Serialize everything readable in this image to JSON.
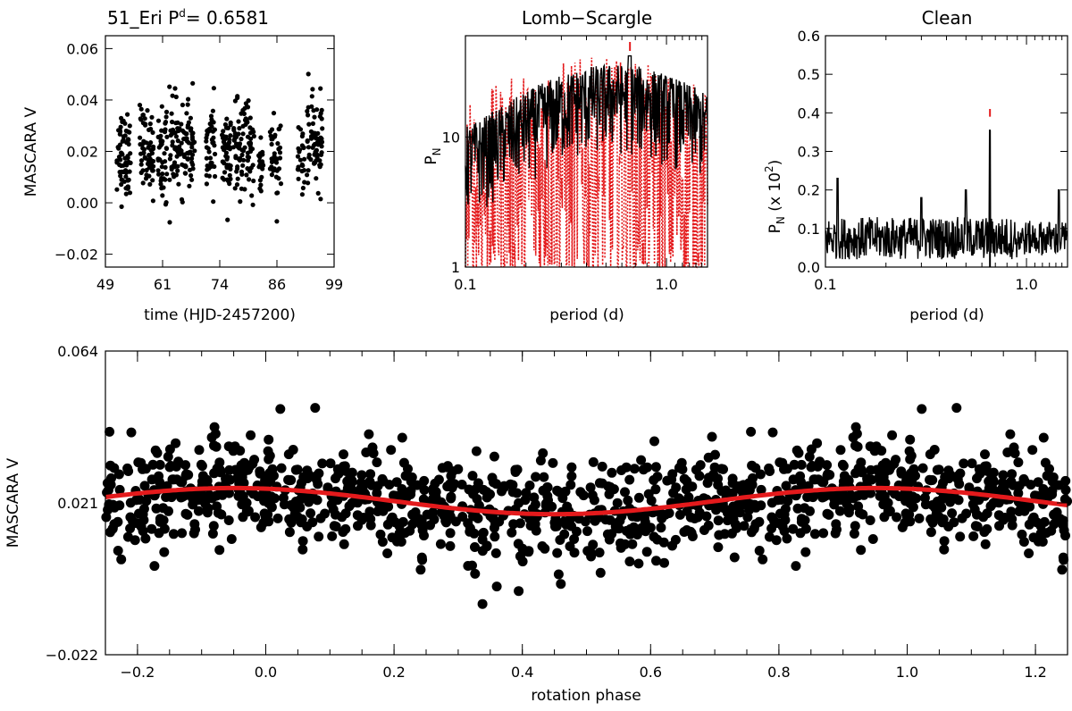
{
  "chart_data": [
    {
      "id": "timeseries",
      "type": "scatter",
      "title": "51_Eri P",
      "title_sup": "d",
      "title_suffix": "= 0.6581",
      "xlabel": "time (HJD-2457200)",
      "ylabel": "MASCARA V",
      "xlim": [
        49,
        99
      ],
      "ylim": [
        -0.025,
        0.065
      ],
      "xticks": [
        "49",
        "61",
        "74",
        "86",
        "99"
      ],
      "yticks": [
        "−0.02",
        "0.00",
        "0.02",
        "0.04",
        "0.06"
      ],
      "ytick_values": [
        -0.02,
        0.0,
        0.02,
        0.04,
        0.06
      ],
      "clusters": [
        {
          "x": [
            51.5,
            54.5
          ],
          "center": 0.019,
          "count": 70
        },
        {
          "x": [
            56.5,
            59.5
          ],
          "center": 0.02,
          "count": 60
        },
        {
          "x": [
            60.5,
            62.5
          ],
          "center": 0.019,
          "count": 45
        },
        {
          "x": [
            63.0,
            68.5
          ],
          "center": 0.022,
          "count": 110
        },
        {
          "x": [
            71.0,
            73.0
          ],
          "center": 0.021,
          "count": 40
        },
        {
          "x": [
            74.5,
            76.5
          ],
          "center": 0.018,
          "count": 50
        },
        {
          "x": [
            77.0,
            81.5
          ],
          "center": 0.021,
          "count": 90
        },
        {
          "x": [
            82.5,
            83.5
          ],
          "center": 0.015,
          "count": 20
        },
        {
          "x": [
            85.0,
            87.5
          ],
          "center": 0.017,
          "count": 40
        },
        {
          "x": [
            91.0,
            92.5
          ],
          "center": 0.016,
          "count": 25
        },
        {
          "x": [
            93.0,
            96.5
          ],
          "center": 0.024,
          "count": 70
        }
      ]
    },
    {
      "id": "lomb_scargle",
      "type": "line",
      "title": "Lomb−Scargle",
      "xlabel": "period (d)",
      "ylabel": "P",
      "ylabel_sub": "N",
      "xscale": "log",
      "yscale": "log",
      "xlim": [
        0.1,
        1.6
      ],
      "ylim": [
        1,
        60
      ],
      "xticks": [
        "0.1",
        "1.0"
      ],
      "xtick_values": [
        0.1,
        1.0
      ],
      "yticks": [
        "1",
        "10"
      ],
      "ytick_values": [
        1,
        10
      ],
      "series": [
        {
          "name": "periodogram",
          "color": "#000000",
          "style": "solid"
        },
        {
          "name": "window",
          "color": "#e41a1c",
          "style": "dotted"
        }
      ],
      "peak_marker_period": 0.6581
    },
    {
      "id": "clean",
      "type": "line",
      "title": "Clean",
      "xlabel": "period (d)",
      "ylabel": "P",
      "ylabel_sub": "N",
      "ylabel_suffix": " (x 10",
      "ylabel_sup": "2",
      "ylabel_close": ")",
      "xscale": "log",
      "xlim": [
        0.1,
        1.6
      ],
      "ylim": [
        0.0,
        0.6
      ],
      "xticks": [
        "0.1",
        "1.0"
      ],
      "xtick_values": [
        0.1,
        1.0
      ],
      "yticks": [
        "0.0",
        "0.1",
        "0.2",
        "0.3",
        "0.4",
        "0.5",
        "0.6"
      ],
      "ytick_values": [
        0.0,
        0.1,
        0.2,
        0.3,
        0.4,
        0.5,
        0.6
      ],
      "peak_period": 0.6581,
      "peak_value": 0.355,
      "secondary_peaks": [
        [
          0.115,
          0.23
        ],
        [
          0.3,
          0.18
        ],
        [
          0.5,
          0.2
        ],
        [
          1.45,
          0.2
        ]
      ],
      "color": "#000000",
      "marker_color": "#e41a1c"
    },
    {
      "id": "phase",
      "type": "scatter",
      "xlabel": "rotation phase",
      "ylabel": "MASCARA V",
      "xlim": [
        -0.25,
        1.25
      ],
      "ylim": [
        -0.022,
        0.064
      ],
      "xticks": [
        "−0.2",
        "0.0",
        "0.2",
        "0.4",
        "0.6",
        "0.8",
        "1.0",
        "1.2"
      ],
      "xtick_values": [
        -0.2,
        0.0,
        0.2,
        0.4,
        0.6,
        0.8,
        1.0,
        1.2
      ],
      "yticks": [
        "−0.022",
        "0.021",
        "0.064"
      ],
      "ytick_values": [
        -0.022,
        0.021,
        0.064
      ],
      "fit": {
        "mean": 0.0215,
        "amplitude": 0.0037,
        "peak_phase": -0.05,
        "color": "#e41a1c"
      },
      "point_scatter": 0.007,
      "points_per_cycle": 800,
      "point_color": "#000000"
    }
  ]
}
